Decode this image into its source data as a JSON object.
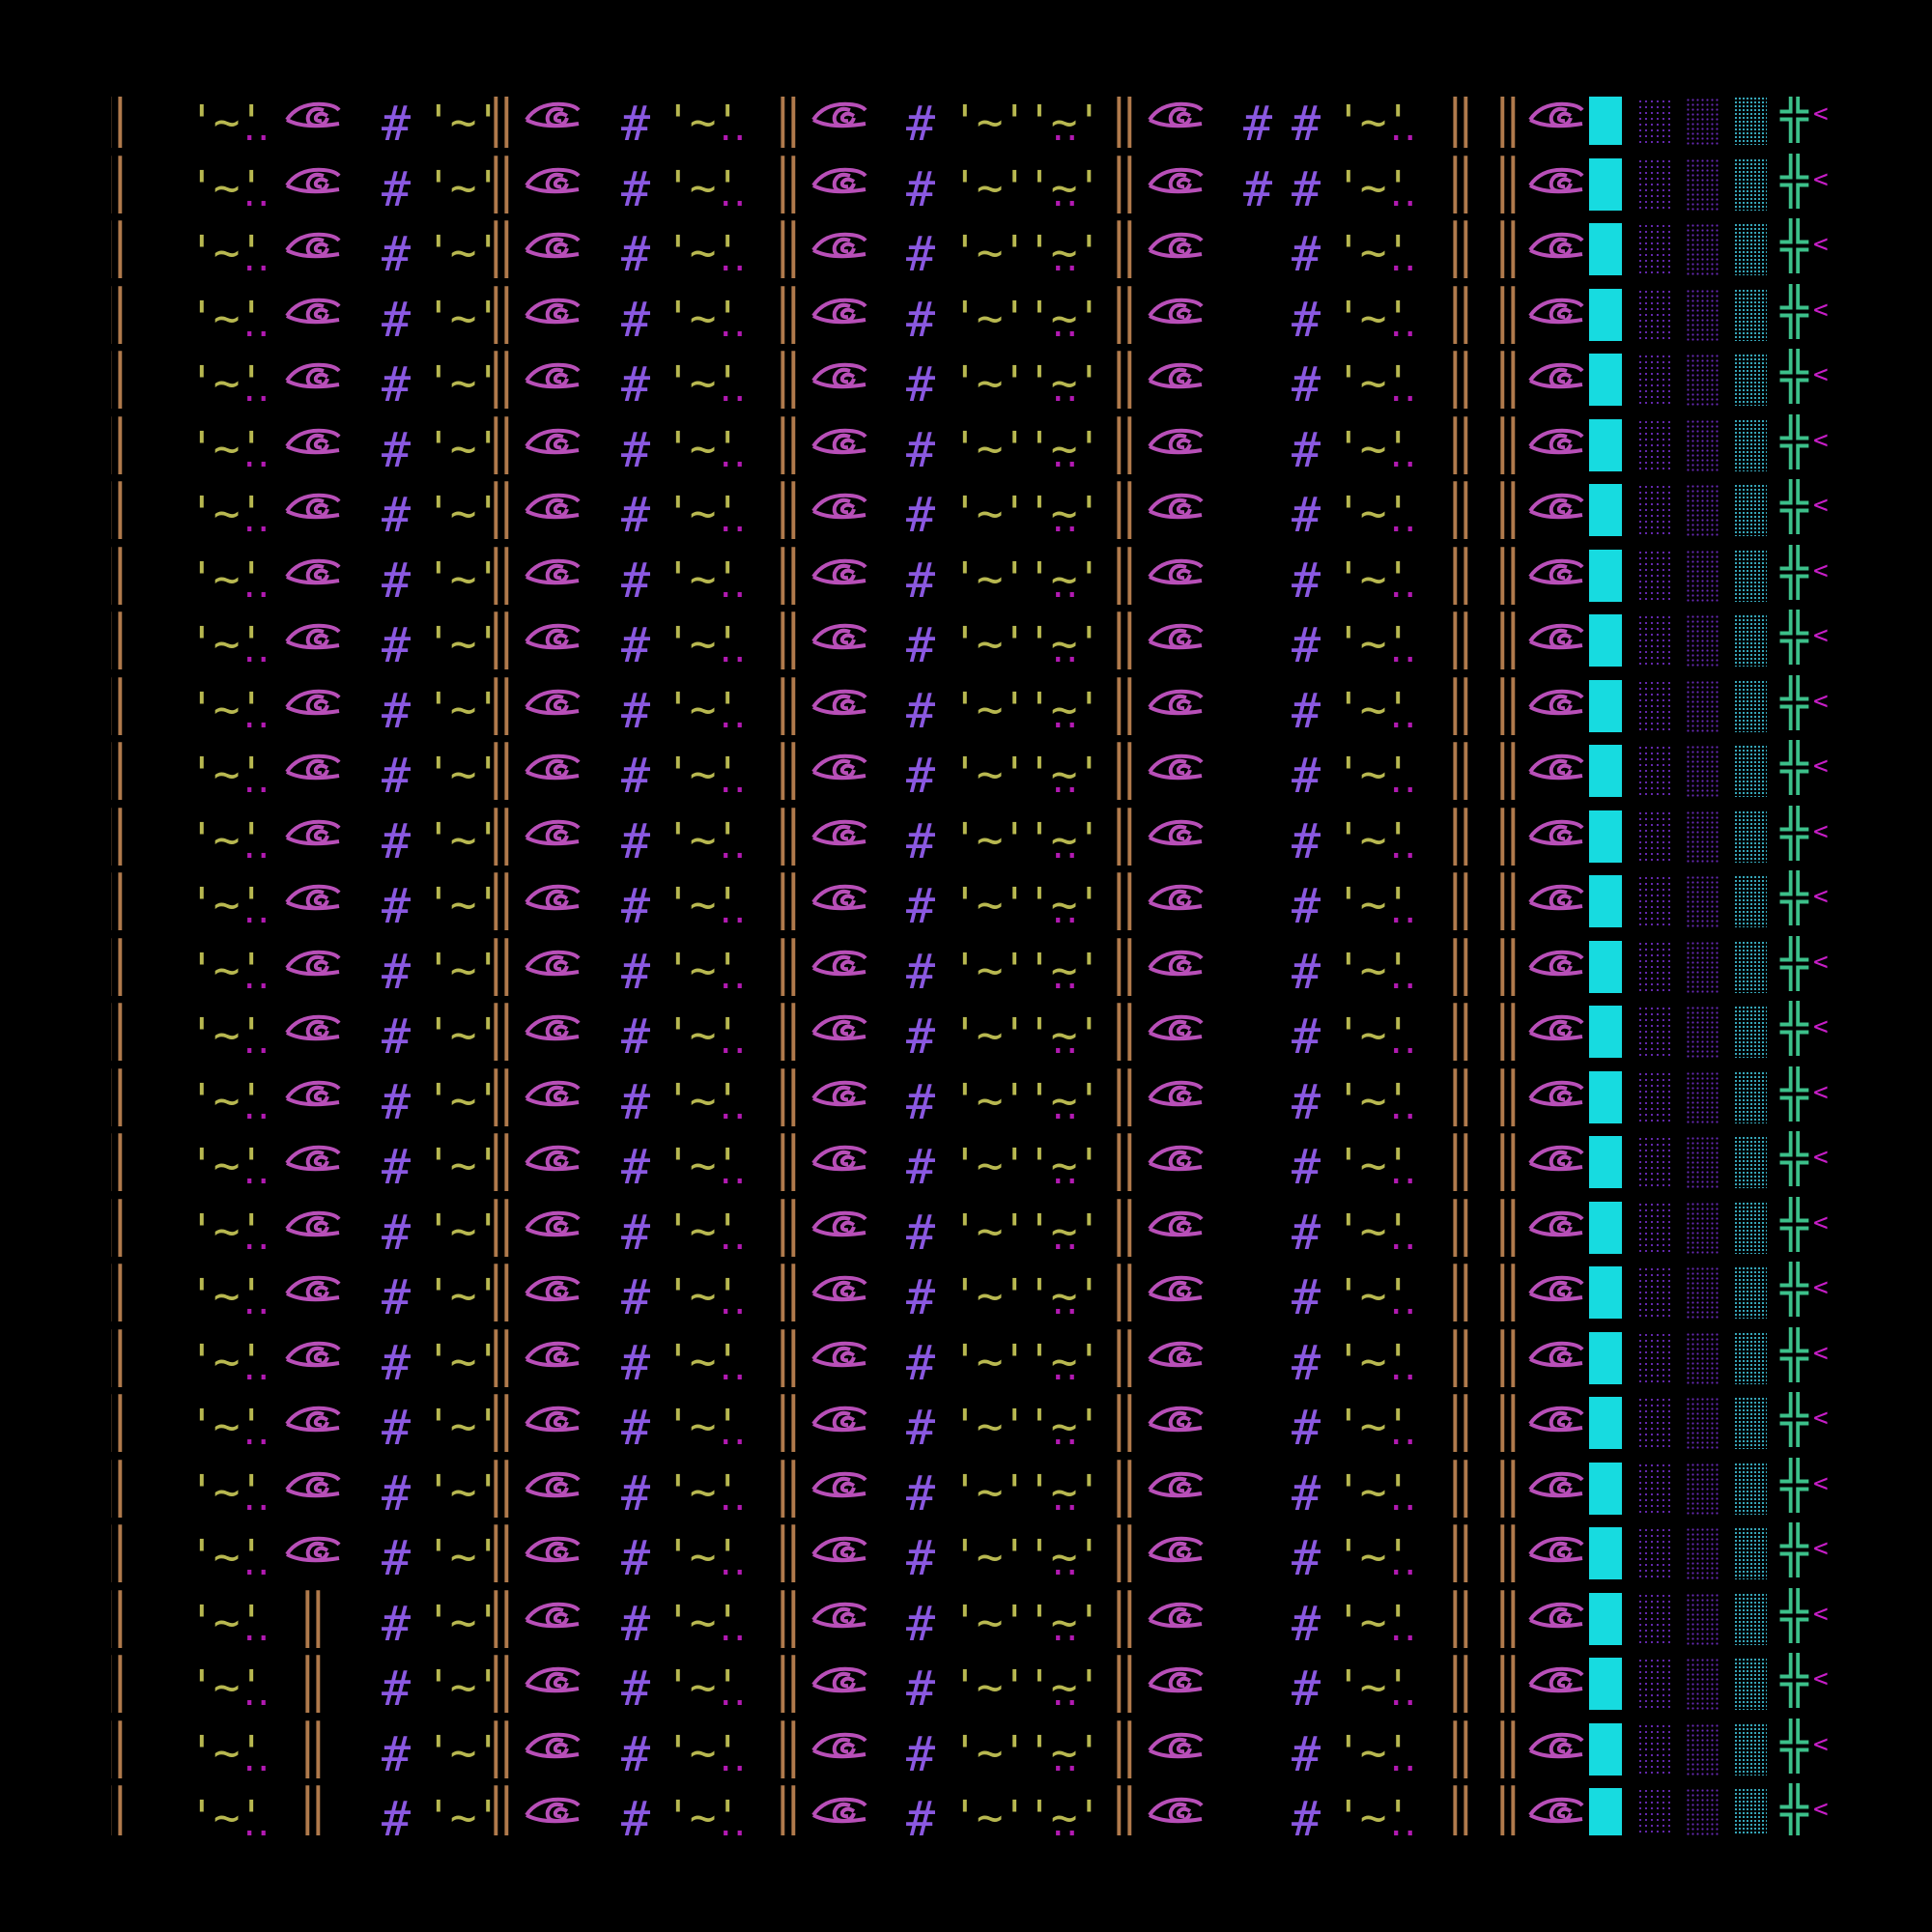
{
  "colors": {
    "background": "#000000",
    "bar": "#b07a4c",
    "eye": "#b84fb8",
    "hash": "#8a58e0",
    "tilde": "#b8b850",
    "dots": "#b21ab2",
    "cyan_block": "#17dbe0",
    "purple_dots": "#6a2ab8",
    "cyan_dots": "#3ab4c8",
    "cross": "#3cc08a",
    "arrow": "#c81ec8"
  },
  "glyphs": {
    "bar": "‖",
    "eye": "👁",
    "hash": "#",
    "tilde_v1": "'~'",
    "tilde_v2": "'~''~'",
    "dots": "..",
    "cross": "╬",
    "arrow": "<"
  },
  "icons": [
    "eye-icon",
    "double-bar-icon",
    "hash-icon",
    "cross-icon",
    "arrow-left-icon"
  ],
  "grid": {
    "rows": 27,
    "row_layout": "repeated pattern of glyph columns"
  }
}
